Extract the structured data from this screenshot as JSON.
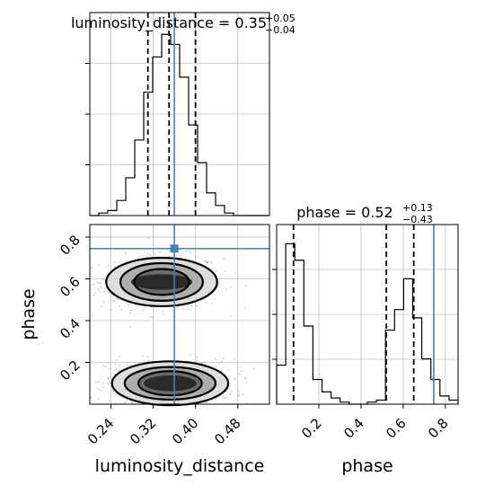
{
  "chart_data": {
    "type": "corner",
    "colors": {
      "truth": "#4682b4",
      "hist": "#000000",
      "grid": "#c0c0c0",
      "samples": "#9a9a9a"
    },
    "parameters": [
      {
        "name": "luminosity_distance",
        "xlabel": "luminosity_distance",
        "median": "0.35",
        "plus": "+0.05",
        "minus": "−0.04"
      },
      {
        "name": "phase",
        "xlabel": "phase",
        "ylabel": "phase",
        "median": "0.52",
        "plus": "+0.13",
        "minus": "−0.43"
      }
    ],
    "titles": [
      {
        "prefix": "luminosity_distance = 0.35",
        "sup": "+0.05",
        "sub": "−0.04"
      },
      {
        "prefix": "phase = 0.52",
        "sup": "+0.13",
        "sub": "−0.43"
      }
    ],
    "ranges": {
      "luminosity_distance": [
        0.2,
        0.54
      ],
      "phase": [
        0.0,
        0.86
      ]
    },
    "ticks": {
      "luminosity_distance": {
        "values": [
          0.24,
          0.32,
          0.4,
          0.48
        ],
        "labels": [
          "0.24",
          "0.32",
          "0.40",
          "0.48"
        ]
      },
      "phase": {
        "values": [
          0.2,
          0.4,
          0.6,
          0.8
        ],
        "labels": [
          "0.2",
          "0.4",
          "0.6",
          "0.8"
        ]
      }
    },
    "truth": {
      "luminosity_distance": 0.36,
      "phase": 0.745
    },
    "quantile_lines": {
      "luminosity_distance": [
        0.31,
        0.35,
        0.4
      ],
      "phase": [
        0.08,
        0.52,
        0.65
      ]
    },
    "hist_luminosity_distance": {
      "edges": [
        0.2,
        0.217,
        0.234,
        0.251,
        0.268,
        0.285,
        0.302,
        0.319,
        0.336,
        0.353,
        0.37,
        0.387,
        0.404,
        0.421,
        0.438,
        0.455,
        0.472,
        0.489,
        0.506,
        0.523,
        0.54
      ],
      "values": [
        0,
        1,
        2,
        6,
        15,
        30,
        49,
        63,
        72,
        68,
        55,
        36,
        21,
        9,
        4,
        1,
        0,
        0,
        0,
        0
      ]
    },
    "hist_phase": {
      "edges": [
        0.0,
        0.043,
        0.086,
        0.129,
        0.172,
        0.215,
        0.258,
        0.301,
        0.344,
        0.387,
        0.43,
        0.473,
        0.516,
        0.559,
        0.602,
        0.645,
        0.688,
        0.731,
        0.774,
        0.817,
        0.86
      ],
      "values": [
        19,
        78,
        70,
        38,
        12,
        6,
        3,
        1,
        0,
        0,
        1,
        2,
        36,
        46,
        61,
        42,
        22,
        12,
        4,
        2
      ]
    },
    "blobs": [
      {
        "cx": 0.336,
        "cy": 0.585,
        "levels": [
          [
            0.058,
            0.037
          ],
          [
            0.052,
            0.062
          ],
          [
            0.078,
            0.09
          ],
          [
            0.105,
            0.116
          ]
        ]
      },
      {
        "cx": 0.352,
        "cy": 0.1,
        "levels": [
          [
            0.05,
            0.038
          ],
          [
            0.06,
            0.058
          ],
          [
            0.086,
            0.078
          ],
          [
            0.11,
            0.105
          ]
        ]
      }
    ]
  }
}
